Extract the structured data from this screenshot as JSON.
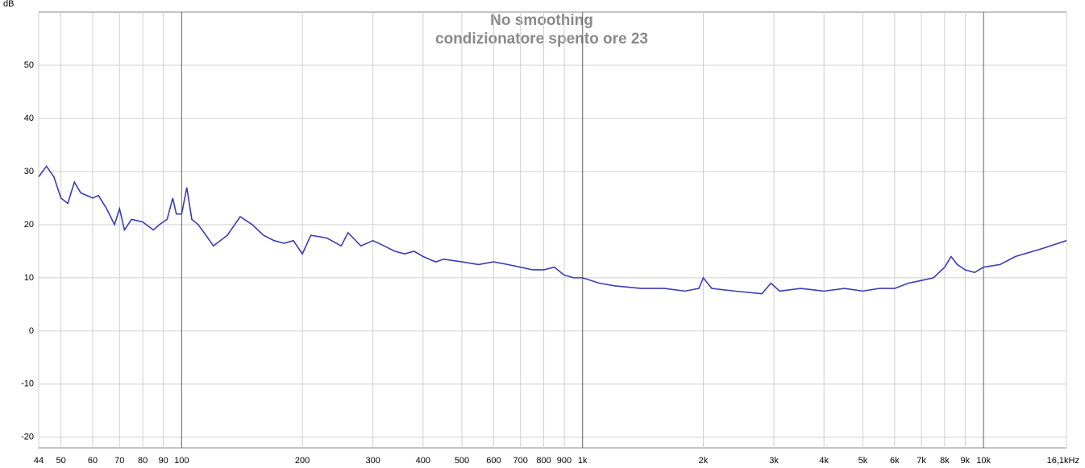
{
  "chart_data": {
    "type": "line",
    "title": "No smoothing",
    "subtitle": "condizionatore spento ore 23",
    "y_label": "dB",
    "x_scale": "log",
    "grid": true,
    "xlim": [
      44,
      16100
    ],
    "ylim": [
      -22,
      60
    ],
    "yticks": [
      -20,
      -10,
      0,
      10,
      20,
      30,
      40,
      50
    ],
    "xticks": [
      44,
      50,
      60,
      70,
      80,
      90,
      100,
      200,
      300,
      400,
      500,
      600,
      700,
      800,
      900,
      {
        "value": 1000,
        "label": "1k"
      },
      {
        "value": 2000,
        "label": "2k"
      },
      {
        "value": 3000,
        "label": "3k"
      },
      {
        "value": 4000,
        "label": "4k"
      },
      {
        "value": 5000,
        "label": "5k"
      },
      {
        "value": 6000,
        "label": "6k"
      },
      {
        "value": 7000,
        "label": "7k"
      },
      {
        "value": 8000,
        "label": "8k"
      },
      {
        "value": 9000,
        "label": "9k"
      },
      {
        "value": 10000,
        "label": "10k"
      },
      {
        "value": 16100,
        "label": "16,1kHz"
      }
    ],
    "x": [
      44,
      46,
      48,
      50,
      52,
      54,
      56,
      60,
      62,
      65,
      68,
      70,
      72,
      75,
      80,
      85,
      88,
      92,
      95,
      97,
      100,
      103,
      106,
      110,
      115,
      120,
      130,
      140,
      150,
      160,
      170,
      180,
      190,
      200,
      210,
      230,
      250,
      260,
      280,
      300,
      320,
      340,
      360,
      380,
      400,
      430,
      450,
      500,
      550,
      600,
      650,
      700,
      750,
      800,
      850,
      900,
      950,
      1000,
      1100,
      1200,
      1400,
      1600,
      1800,
      1950,
      2000,
      2100,
      2400,
      2800,
      2950,
      3100,
      3500,
      4000,
      4500,
      5000,
      5500,
      6000,
      6500,
      7000,
      7500,
      8000,
      8300,
      8600,
      9000,
      9500,
      10000,
      11000,
      12000,
      14000,
      16100
    ],
    "series": [
      {
        "color": "#3c3cb4",
        "values": [
          29,
          31,
          29,
          25,
          24,
          28,
          26,
          25,
          25.5,
          23,
          20,
          23,
          19,
          21,
          20.5,
          19,
          20,
          21,
          25,
          22,
          22,
          27,
          21,
          20,
          18,
          16,
          18,
          21.5,
          20,
          18,
          17,
          16.5,
          17,
          14.5,
          18,
          17.5,
          16,
          18.5,
          16,
          17,
          16,
          15,
          14.5,
          15,
          14,
          13,
          13.5,
          13,
          12.5,
          13,
          12.5,
          12,
          11.5,
          11.5,
          12,
          10.5,
          10,
          10,
          9,
          8.5,
          8,
          8,
          7.5,
          8,
          10,
          8,
          7.5,
          7,
          9,
          7.5,
          8,
          7.5,
          8,
          7.5,
          8,
          8,
          9,
          9.5,
          10,
          12,
          14,
          12.5,
          11.5,
          11,
          12,
          12.5,
          14,
          15.5,
          17
        ]
      }
    ]
  }
}
